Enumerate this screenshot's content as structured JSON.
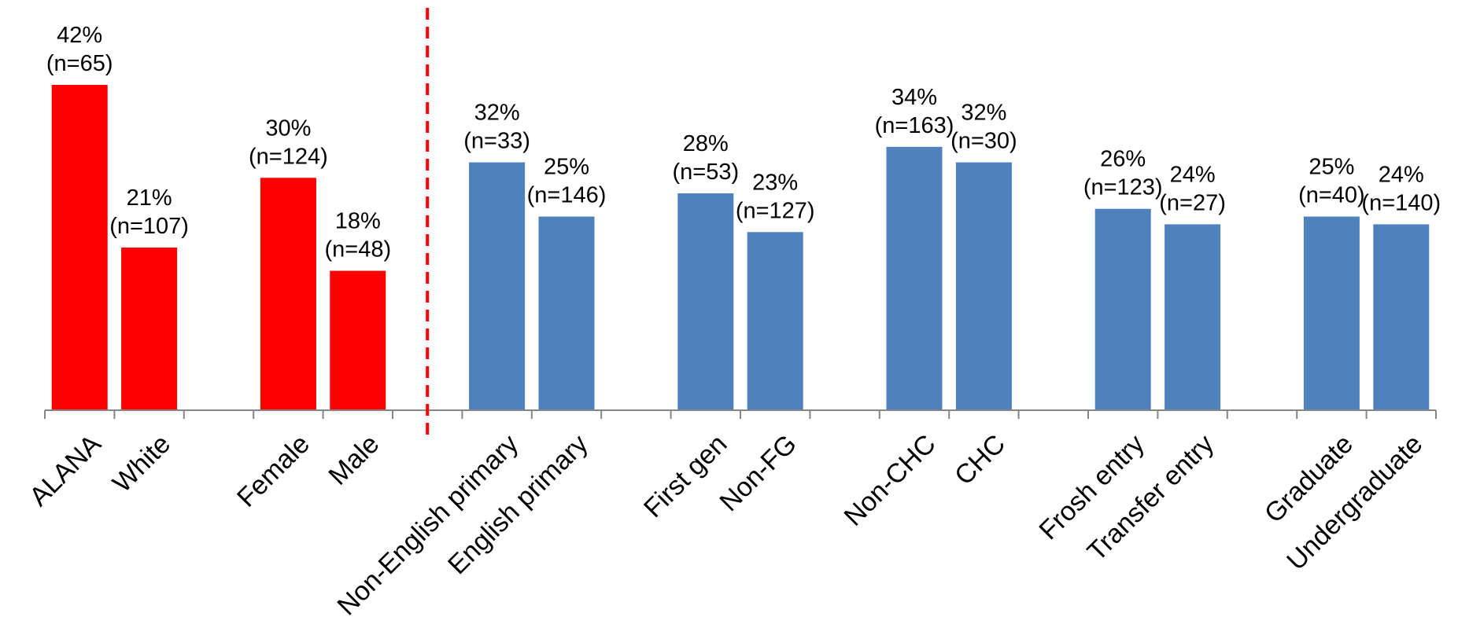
{
  "chart_data": {
    "type": "bar",
    "title": "",
    "xlabel": "",
    "ylabel": "",
    "ylim": [
      0,
      45
    ],
    "grid": false,
    "legend": "none",
    "colors": {
      "red": "#ff0000",
      "blue": "#4f81bd",
      "divider": "#ff0000",
      "axis": "#868686"
    },
    "categories": [
      "ALANA",
      "White",
      "",
      "Female",
      "Male",
      "",
      "Non-English primary",
      "English primary",
      "",
      "First gen",
      "Non-FG",
      "",
      "Non-CHC",
      "CHC",
      "",
      "Frosh entry",
      "Transfer entry",
      "",
      "Graduate",
      "Undergraduate"
    ],
    "values": [
      42,
      21,
      null,
      30,
      18,
      null,
      32,
      25,
      null,
      28,
      23,
      null,
      34,
      32,
      null,
      26,
      24,
      null,
      25,
      24
    ],
    "bar_colors": [
      "red",
      "red",
      null,
      "red",
      "red",
      null,
      "blue",
      "blue",
      null,
      "blue",
      "blue",
      null,
      "blue",
      "blue",
      null,
      "blue",
      "blue",
      null,
      "blue",
      "blue"
    ],
    "labels_pct": [
      "42%",
      "21%",
      "",
      "30%",
      "18%",
      "",
      "32%",
      "25%",
      "",
      "28%",
      "23%",
      "",
      "34%",
      "32%",
      "",
      "26%",
      "24%",
      "",
      "25%",
      "24%"
    ],
    "labels_n": [
      "(n=65)",
      "(n=107)",
      "",
      "(n=124)",
      "(n=48)",
      "",
      "(n=33)",
      "(n=146)",
      "",
      "(n=53)",
      "(n=127)",
      "",
      "(n=163)",
      "(n=30)",
      "",
      "(n=123)",
      "(n=27)",
      "",
      "(n=40)",
      "(n=140)"
    ],
    "divider_after_category": 5
  }
}
